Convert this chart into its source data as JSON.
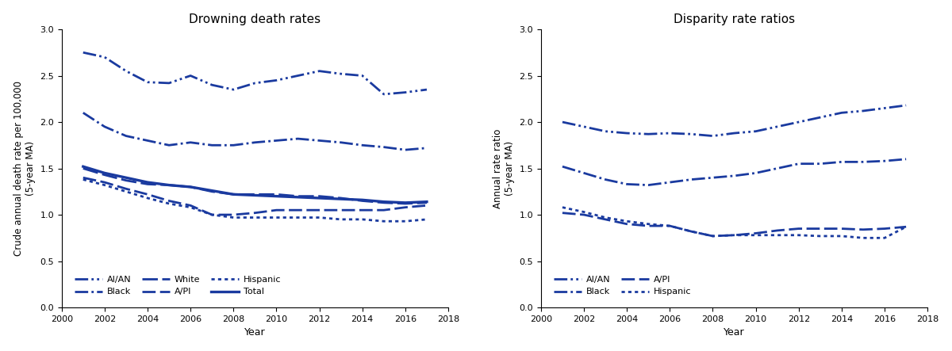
{
  "color": "#1a3a9f",
  "years": [
    2001,
    2002,
    2003,
    2004,
    2005,
    2006,
    2007,
    2008,
    2009,
    2010,
    2011,
    2012,
    2013,
    2014,
    2015,
    2016,
    2017
  ],
  "panel1_title": "Drowning death rates",
  "panel1_ylabel": "Crude annual death rate per 100,000\n(5-year MA)",
  "panel1_xlabel": "Year",
  "panel1_ylim": [
    0,
    3.0
  ],
  "panel1_yticks": [
    0,
    0.5,
    1.0,
    1.5,
    2.0,
    2.5,
    3.0
  ],
  "AIAN_rates": [
    2.75,
    2.7,
    2.55,
    2.43,
    2.42,
    2.5,
    2.4,
    2.35,
    2.42,
    2.45,
    2.5,
    2.55,
    2.52,
    2.5,
    2.3,
    2.32,
    2.35
  ],
  "Black_rates": [
    2.1,
    1.95,
    1.85,
    1.8,
    1.75,
    1.78,
    1.75,
    1.75,
    1.78,
    1.8,
    1.82,
    1.8,
    1.78,
    1.75,
    1.73,
    1.7,
    1.72
  ],
  "White_rates": [
    1.5,
    1.43,
    1.37,
    1.33,
    1.32,
    1.3,
    1.25,
    1.22,
    1.22,
    1.22,
    1.2,
    1.2,
    1.18,
    1.15,
    1.13,
    1.12,
    1.13
  ],
  "API_rates": [
    1.4,
    1.35,
    1.28,
    1.22,
    1.15,
    1.1,
    1.0,
    1.0,
    1.02,
    1.05,
    1.05,
    1.05,
    1.05,
    1.05,
    1.05,
    1.08,
    1.1
  ],
  "Hispanic_rates": [
    1.38,
    1.32,
    1.25,
    1.18,
    1.12,
    1.08,
    1.0,
    0.97,
    0.97,
    0.97,
    0.97,
    0.97,
    0.95,
    0.95,
    0.93,
    0.93,
    0.95
  ],
  "Total_rates": [
    1.52,
    1.45,
    1.4,
    1.35,
    1.32,
    1.3,
    1.26,
    1.22,
    1.21,
    1.2,
    1.19,
    1.18,
    1.17,
    1.16,
    1.14,
    1.13,
    1.14
  ],
  "panel2_title": "Disparity rate ratios",
  "panel2_ylabel": "Annual rate ratio\n(5-year MA)",
  "panel2_xlabel": "Year",
  "panel2_ylim": [
    0,
    3.0
  ],
  "panel2_yticks": [
    0,
    0.5,
    1.0,
    1.5,
    2.0,
    2.5,
    3.0
  ],
  "AIAN_ratios": [
    2.0,
    1.95,
    1.9,
    1.88,
    1.87,
    1.88,
    1.87,
    1.85,
    1.88,
    1.9,
    1.95,
    2.0,
    2.05,
    2.1,
    2.12,
    2.15,
    2.18
  ],
  "Black_ratios": [
    1.52,
    1.45,
    1.38,
    1.33,
    1.32,
    1.35,
    1.38,
    1.4,
    1.42,
    1.45,
    1.5,
    1.55,
    1.55,
    1.57,
    1.57,
    1.58,
    1.6
  ],
  "API_ratios": [
    1.02,
    1.0,
    0.95,
    0.9,
    0.88,
    0.88,
    0.82,
    0.77,
    0.78,
    0.8,
    0.83,
    0.85,
    0.85,
    0.85,
    0.84,
    0.85,
    0.87
  ],
  "Hispanic_ratios": [
    1.08,
    1.03,
    0.97,
    0.93,
    0.9,
    0.88,
    0.82,
    0.77,
    0.78,
    0.78,
    0.78,
    0.78,
    0.77,
    0.77,
    0.75,
    0.75,
    0.87
  ]
}
